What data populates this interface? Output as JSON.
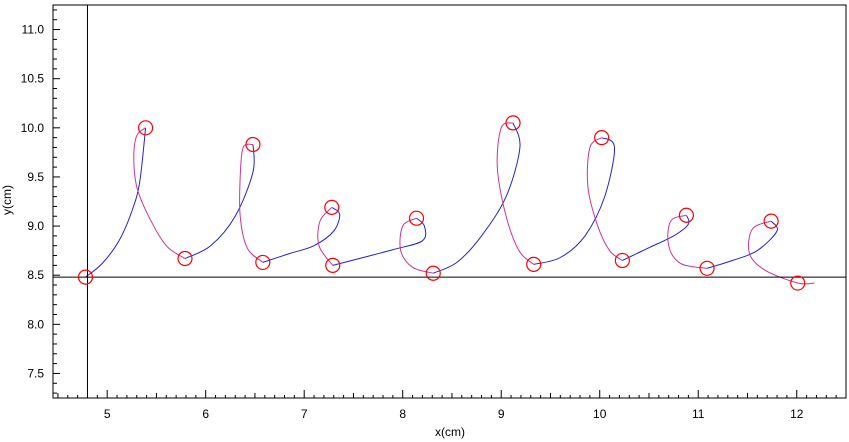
{
  "chart_data": {
    "type": "scatter",
    "xlabel": "x(cm)",
    "ylabel": "y(cm)",
    "xlim": [
      4.45,
      12.5
    ],
    "ylim": [
      7.25,
      11.25
    ],
    "x_ticks": [
      "5",
      "6",
      "7",
      "8",
      "9",
      "10",
      "11",
      "12"
    ],
    "y_ticks": [
      "7.5",
      "8.0",
      "8.5",
      "9.0",
      "9.5",
      "10.0",
      "10.5",
      "11.0"
    ],
    "crosshair": {
      "x": 4.8,
      "y": 8.48
    },
    "grid": false,
    "colors": {
      "trace_a": "#2222cc",
      "trace_b": "#cc3399",
      "marker": "#ff0000",
      "axes": "#000000"
    },
    "markers": [
      {
        "x": 4.78,
        "y": 8.48
      },
      {
        "x": 5.39,
        "y": 10.0
      },
      {
        "x": 5.79,
        "y": 8.67
      },
      {
        "x": 6.48,
        "y": 9.83
      },
      {
        "x": 6.58,
        "y": 8.63
      },
      {
        "x": 7.28,
        "y": 9.19
      },
      {
        "x": 7.29,
        "y": 8.6
      },
      {
        "x": 8.14,
        "y": 9.08
      },
      {
        "x": 8.31,
        "y": 8.52
      },
      {
        "x": 9.12,
        "y": 10.05
      },
      {
        "x": 9.33,
        "y": 8.61
      },
      {
        "x": 10.02,
        "y": 9.9
      },
      {
        "x": 10.23,
        "y": 8.65
      },
      {
        "x": 10.88,
        "y": 9.11
      },
      {
        "x": 11.09,
        "y": 8.57
      },
      {
        "x": 11.74,
        "y": 9.05
      },
      {
        "x": 12.01,
        "y": 8.42
      }
    ],
    "series": [
      {
        "color": "trace_a",
        "points": [
          [
            4.78,
            8.48
          ],
          [
            4.95,
            8.62
          ],
          [
            5.12,
            8.85
          ],
          [
            5.25,
            9.15
          ],
          [
            5.33,
            9.45
          ],
          [
            5.39,
            10.0
          ]
        ]
      },
      {
        "color": "trace_b",
        "points": [
          [
            5.39,
            10.0
          ],
          [
            5.3,
            9.92
          ],
          [
            5.27,
            9.7
          ],
          [
            5.3,
            9.4
          ],
          [
            5.42,
            9.1
          ],
          [
            5.6,
            8.8
          ],
          [
            5.79,
            8.67
          ]
        ]
      },
      {
        "color": "trace_a",
        "points": [
          [
            5.79,
            8.67
          ],
          [
            6.05,
            8.8
          ],
          [
            6.3,
            9.1
          ],
          [
            6.48,
            9.55
          ],
          [
            6.48,
            9.83
          ]
        ]
      },
      {
        "color": "trace_b",
        "points": [
          [
            6.48,
            9.83
          ],
          [
            6.38,
            9.8
          ],
          [
            6.35,
            9.5
          ],
          [
            6.35,
            9.1
          ],
          [
            6.42,
            8.78
          ],
          [
            6.58,
            8.63
          ]
        ]
      },
      {
        "color": "trace_a",
        "points": [
          [
            6.58,
            8.63
          ],
          [
            6.85,
            8.72
          ],
          [
            7.1,
            8.8
          ],
          [
            7.3,
            8.95
          ],
          [
            7.36,
            9.12
          ],
          [
            7.28,
            9.19
          ]
        ]
      },
      {
        "color": "trace_b",
        "points": [
          [
            7.28,
            9.19
          ],
          [
            7.16,
            9.05
          ],
          [
            7.15,
            8.8
          ],
          [
            7.29,
            8.6
          ]
        ]
      },
      {
        "color": "trace_a",
        "points": [
          [
            7.29,
            8.6
          ],
          [
            7.6,
            8.68
          ],
          [
            7.9,
            8.76
          ],
          [
            8.2,
            8.85
          ],
          [
            8.22,
            9.0
          ],
          [
            8.14,
            9.08
          ]
        ]
      },
      {
        "color": "trace_b",
        "points": [
          [
            8.14,
            9.08
          ],
          [
            8.0,
            9.0
          ],
          [
            7.98,
            8.75
          ],
          [
            8.1,
            8.58
          ],
          [
            8.31,
            8.52
          ]
        ]
      },
      {
        "color": "trace_a",
        "points": [
          [
            8.31,
            8.52
          ],
          [
            8.55,
            8.63
          ],
          [
            8.8,
            8.9
          ],
          [
            9.05,
            9.3
          ],
          [
            9.19,
            9.8
          ],
          [
            9.12,
            10.05
          ]
        ]
      },
      {
        "color": "trace_b",
        "points": [
          [
            9.12,
            10.05
          ],
          [
            9.0,
            10.0
          ],
          [
            8.96,
            9.6
          ],
          [
            9.05,
            9.1
          ],
          [
            9.18,
            8.75
          ],
          [
            9.33,
            8.61
          ]
        ]
      },
      {
        "color": "trace_a",
        "points": [
          [
            9.33,
            8.61
          ],
          [
            9.6,
            8.68
          ],
          [
            9.85,
            8.9
          ],
          [
            10.05,
            9.3
          ],
          [
            10.15,
            9.8
          ],
          [
            10.02,
            9.9
          ]
        ]
      },
      {
        "color": "trace_b",
        "points": [
          [
            10.02,
            9.9
          ],
          [
            9.9,
            9.8
          ],
          [
            9.88,
            9.4
          ],
          [
            9.98,
            9.0
          ],
          [
            10.1,
            8.75
          ],
          [
            10.23,
            8.65
          ]
        ]
      },
      {
        "color": "trace_a",
        "points": [
          [
            10.23,
            8.65
          ],
          [
            10.5,
            8.78
          ],
          [
            10.75,
            8.9
          ],
          [
            10.9,
            9.02
          ],
          [
            10.88,
            9.11
          ]
        ]
      },
      {
        "color": "trace_b",
        "points": [
          [
            10.88,
            9.11
          ],
          [
            10.72,
            9.05
          ],
          [
            10.7,
            8.8
          ],
          [
            10.82,
            8.62
          ],
          [
            11.09,
            8.57
          ]
        ]
      },
      {
        "color": "trace_a",
        "points": [
          [
            11.09,
            8.57
          ],
          [
            11.35,
            8.65
          ],
          [
            11.6,
            8.75
          ],
          [
            11.8,
            8.95
          ],
          [
            11.74,
            9.05
          ]
        ]
      },
      {
        "color": "trace_b",
        "points": [
          [
            11.74,
            9.05
          ],
          [
            11.55,
            8.97
          ],
          [
            11.52,
            8.72
          ],
          [
            11.68,
            8.55
          ],
          [
            12.01,
            8.42
          ],
          [
            12.18,
            8.42
          ]
        ]
      }
    ]
  }
}
